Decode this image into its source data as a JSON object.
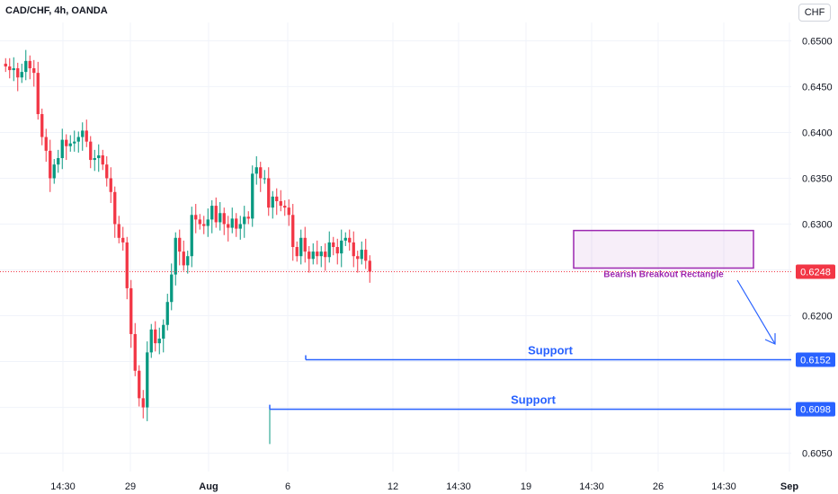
{
  "header": {
    "title": "CAD/CHF, 4h, OANDA",
    "currency": "CHF"
  },
  "colors": {
    "up": "#089981",
    "down": "#f23645",
    "support": "#2962ff",
    "rectangle": "#9c27b0",
    "grid": "#f0f3fa",
    "text": "#131722",
    "price_line": "#f23645"
  },
  "chart_data": {
    "type": "candlestick",
    "symbol": "CAD/CHF",
    "timeframe": "4h",
    "source": "OANDA",
    "ylim": [
      0.603,
      0.652
    ],
    "y_ticks": [
      "0.6500",
      "0.6450",
      "0.6400",
      "0.6350",
      "0.6300",
      "0.6250",
      "0.6200",
      "0.6150",
      "0.6100",
      "0.6050"
    ],
    "x_ticks": [
      "14:30",
      "29",
      "Aug",
      "6",
      "12",
      "14:30",
      "19",
      "14:30",
      "26",
      "14:30",
      "Sep"
    ],
    "last_price": "0.6248",
    "support_levels": [
      {
        "label": "Support",
        "value": "0.6152"
      },
      {
        "label": "Support",
        "value": "0.6098"
      }
    ],
    "pattern": {
      "label": "Bearish Breakout Rectangle",
      "top": 0.6293,
      "bottom": 0.6252
    },
    "path_points": [
      0.6475,
      0.6472,
      0.6468,
      0.647,
      0.646,
      0.6466,
      0.6478,
      0.647,
      0.6465,
      0.642,
      0.6395,
      0.638,
      0.635,
      0.6365,
      0.6372,
      0.6392,
      0.6385,
      0.6388,
      0.639,
      0.6395,
      0.6402,
      0.639,
      0.637,
      0.6372,
      0.6375,
      0.6365,
      0.635,
      0.6335,
      0.63,
      0.6285,
      0.628,
      0.623,
      0.618,
      0.614,
      0.611,
      0.61,
      0.616,
      0.6185,
      0.617,
      0.6175,
      0.619,
      0.6215,
      0.6245,
      0.6285,
      0.627,
      0.6255,
      0.6265,
      0.631,
      0.6305,
      0.63,
      0.6298,
      0.6305,
      0.632,
      0.6302,
      0.6312,
      0.63,
      0.6296,
      0.6306,
      0.6295,
      0.63,
      0.6308,
      0.6306,
      0.6355,
      0.6362,
      0.635,
      0.635,
      0.6318,
      0.633,
      0.6325,
      0.632,
      0.6318,
      0.631,
      0.6275,
      0.6265,
      0.6285,
      0.627,
      0.6262,
      0.627,
      0.6265,
      0.627,
      0.6264,
      0.628,
      0.6275,
      0.6268,
      0.6282,
      0.6285,
      0.628,
      0.6265,
      0.6262,
      0.6272,
      0.626,
      0.6248
    ]
  }
}
